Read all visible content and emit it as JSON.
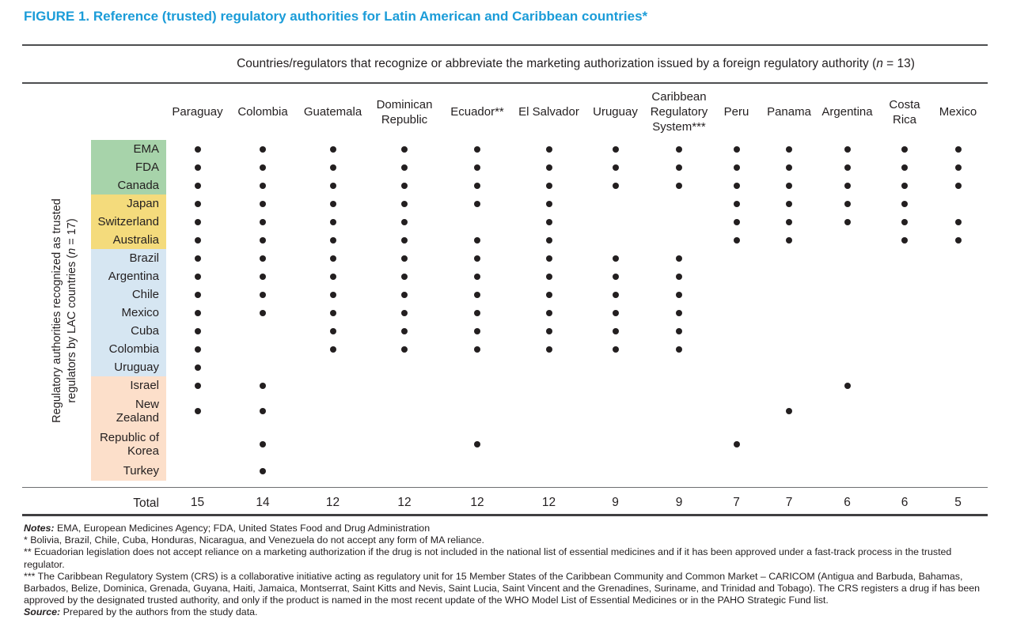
{
  "title": "FIGURE 1. Reference (trusted) regulatory authorities for Latin American and Caribbean countries*",
  "accent_color": "#1b9cd8",
  "span_header": {
    "prefix": "Countries/regulators that recognize or abbreviate the marketing authorization issued by a foreign regulatory authority (",
    "n_var": "n",
    "suffix": " = 13)"
  },
  "side_label": {
    "line1": "Regulatory authorities recognized as trusted",
    "line2_prefix": "regulators by LAC countries (",
    "n_var": "n",
    "line2_suffix": " = 17)"
  },
  "chart_data": {
    "type": "table",
    "title": "Reference (trusted) regulatory authorities for Latin American and Caribbean countries",
    "columns": [
      "Paraguay",
      "Colombia",
      "Guatemala",
      "Dominican Republic",
      "Ecuador**",
      "El Salvador",
      "Uruguay",
      "Caribbean Regulatory System***",
      "Peru",
      "Panama",
      "Argentina",
      "Costa Rica",
      "Mexico"
    ],
    "group_colors": {
      "green": "#a7d3aa",
      "yellow": "#f4db7c",
      "blue": "#d6e6f2",
      "peach": "#fcdfca"
    },
    "row_groups": [
      {
        "group": "green",
        "members": [
          "EMA",
          "FDA",
          "Canada"
        ]
      },
      {
        "group": "yellow",
        "members": [
          "Japan",
          "Switzerland",
          "Australia"
        ]
      },
      {
        "group": "blue",
        "members": [
          "Brazil",
          "Argentina",
          "Chile",
          "Mexico",
          "Cuba",
          "Colombia",
          "Uruguay"
        ]
      },
      {
        "group": "peach",
        "members": [
          "Israel",
          "New Zealand",
          "Republic of Korea",
          "Turkey"
        ]
      }
    ],
    "rows": [
      {
        "label": "EMA",
        "group": "green",
        "dots": [
          1,
          1,
          1,
          1,
          1,
          1,
          1,
          1,
          1,
          1,
          1,
          1,
          1
        ]
      },
      {
        "label": "FDA",
        "group": "green",
        "dots": [
          1,
          1,
          1,
          1,
          1,
          1,
          1,
          1,
          1,
          1,
          1,
          1,
          1
        ]
      },
      {
        "label": "Canada",
        "group": "green",
        "dots": [
          1,
          1,
          1,
          1,
          1,
          1,
          1,
          1,
          1,
          1,
          1,
          1,
          1
        ]
      },
      {
        "label": "Japan",
        "group": "yellow",
        "dots": [
          1,
          1,
          1,
          1,
          1,
          1,
          0,
          0,
          1,
          1,
          1,
          1,
          0
        ]
      },
      {
        "label": "Switzerland",
        "group": "yellow",
        "dots": [
          1,
          1,
          1,
          1,
          0,
          1,
          0,
          0,
          1,
          1,
          1,
          1,
          1
        ]
      },
      {
        "label": "Australia",
        "group": "yellow",
        "dots": [
          1,
          1,
          1,
          1,
          1,
          1,
          0,
          0,
          1,
          1,
          0,
          1,
          1
        ]
      },
      {
        "label": "Brazil",
        "group": "blue",
        "dots": [
          1,
          1,
          1,
          1,
          1,
          1,
          1,
          1,
          0,
          0,
          0,
          0,
          0
        ]
      },
      {
        "label": "Argentina",
        "group": "blue",
        "dots": [
          1,
          1,
          1,
          1,
          1,
          1,
          1,
          1,
          0,
          0,
          0,
          0,
          0
        ]
      },
      {
        "label": "Chile",
        "group": "blue",
        "dots": [
          1,
          1,
          1,
          1,
          1,
          1,
          1,
          1,
          0,
          0,
          0,
          0,
          0
        ]
      },
      {
        "label": "Mexico",
        "group": "blue",
        "dots": [
          1,
          1,
          1,
          1,
          1,
          1,
          1,
          1,
          0,
          0,
          0,
          0,
          0
        ]
      },
      {
        "label": "Cuba",
        "group": "blue",
        "dots": [
          1,
          0,
          1,
          1,
          1,
          1,
          1,
          1,
          0,
          0,
          0,
          0,
          0
        ]
      },
      {
        "label": "Colombia",
        "group": "blue",
        "dots": [
          1,
          0,
          1,
          1,
          1,
          1,
          1,
          1,
          0,
          0,
          0,
          0,
          0
        ]
      },
      {
        "label": "Uruguay",
        "group": "blue",
        "dots": [
          1,
          0,
          0,
          0,
          0,
          0,
          0,
          0,
          0,
          0,
          0,
          0,
          0
        ]
      },
      {
        "label": "Israel",
        "group": "peach",
        "dots": [
          1,
          1,
          0,
          0,
          0,
          0,
          0,
          0,
          0,
          0,
          1,
          0,
          0
        ]
      },
      {
        "label": "New Zealand",
        "group": "peach",
        "dots": [
          1,
          1,
          0,
          0,
          0,
          0,
          0,
          0,
          0,
          1,
          0,
          0,
          0
        ]
      },
      {
        "label": "Republic of Korea",
        "group": "peach",
        "dots": [
          0,
          1,
          0,
          0,
          1,
          0,
          0,
          0,
          1,
          0,
          0,
          0,
          0
        ]
      },
      {
        "label": "Turkey",
        "group": "peach",
        "dots": [
          0,
          1,
          0,
          0,
          0,
          0,
          0,
          0,
          0,
          0,
          0,
          0,
          0
        ]
      }
    ],
    "totals_label": "Total",
    "column_totals": [
      15,
      14,
      12,
      12,
      12,
      12,
      9,
      9,
      7,
      7,
      6,
      6,
      5
    ]
  },
  "notes": [
    {
      "label": "Notes:",
      "text": " EMA, European Medicines Agency; FDA, United States Food and Drug Administration"
    },
    {
      "label": "",
      "text": "* Bolivia, Brazil, Chile, Cuba, Honduras, Nicaragua, and Venezuela do not accept any form of MA reliance."
    },
    {
      "label": "",
      "text": "** Ecuadorian legislation does not accept reliance on a marketing authorization if the drug is not included in the national list of essential medicines and if it has been approved under a fast-track process in the trusted regulator."
    },
    {
      "label": "",
      "text": "*** The Caribbean Regulatory System (CRS) is a collaborative initiative acting as regulatory unit for 15 Member States of the Caribbean Community and Common Market – CARICOM (Antigua and Barbuda, Bahamas, Barbados, Belize, Dominica, Grenada, Guyana, Haiti, Jamaica, Montserrat, Saint Kitts and Nevis, Saint Lucia, Saint Vincent and the Grenadines, Suriname, and Trinidad and Tobago). The CRS registers a drug if has been approved by the designated trusted authority, and only if the product is named in the most recent update of the WHO Model List of Essential Medicines or in the PAHO Strategic Fund list."
    },
    {
      "label": "Source:",
      "text": " Prepared by the authors from the study data."
    }
  ]
}
